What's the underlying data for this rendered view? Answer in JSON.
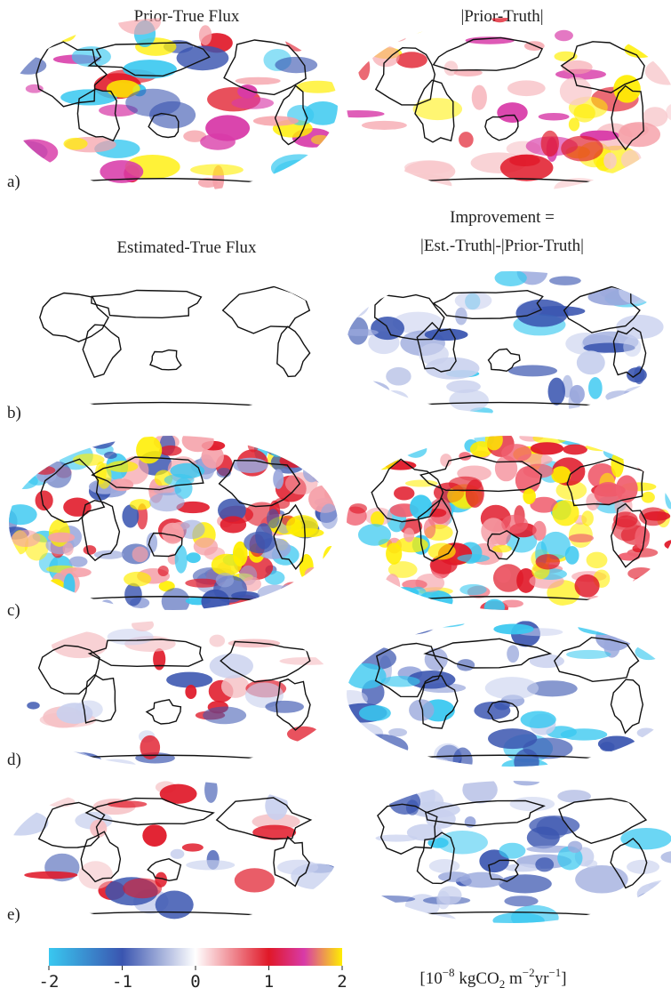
{
  "columns": {
    "left_a": "Prior-True Flux",
    "right_a": "|Prior-Truth|",
    "left_b": "Estimated-True Flux",
    "right_b_line1": "Improvement =",
    "right_b_line2": "|Est.-Truth|-|Prior-Truth|"
  },
  "panels": [
    "a)",
    "b)",
    "c)",
    "d)",
    "e)"
  ],
  "colorbar": {
    "range": [
      -2,
      2
    ],
    "ticks": [
      -2,
      -1,
      0,
      1,
      2
    ]
  },
  "unit": {
    "open": "[10",
    "exp1": "−8",
    "mid": " kgCO",
    "sub": "2",
    "m": " m",
    "exp2": "−2",
    "yr": "yr",
    "exp3": "−1",
    "close": "]"
  }
}
